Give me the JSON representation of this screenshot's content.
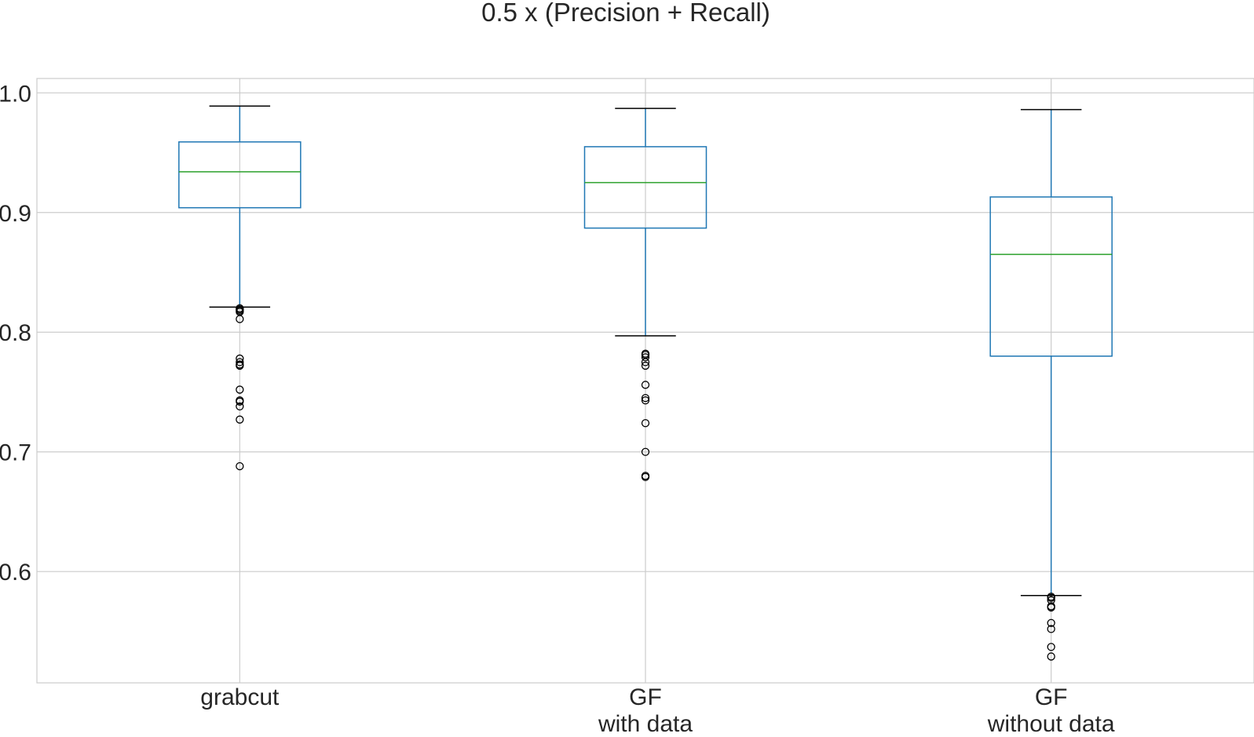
{
  "chart_data": {
    "type": "box",
    "title": "0.5 x (Precision + Recall)",
    "xlabel": "",
    "ylabel": "",
    "ylim": [
      0.507,
      1.012
    ],
    "yticks": [
      0.6,
      0.7,
      0.8,
      0.9,
      1.0
    ],
    "ytick_labels": [
      "0.6",
      "0.7",
      "0.8",
      "0.9",
      "1.0"
    ],
    "grid": true,
    "categories": [
      {
        "lines": [
          "grabcut"
        ]
      },
      {
        "lines": [
          "GF",
          "with data"
        ]
      },
      {
        "lines": [
          "GF",
          "without data"
        ]
      }
    ],
    "boxes": [
      {
        "whisker_low": 0.821,
        "q1": 0.904,
        "median": 0.934,
        "q3": 0.959,
        "whisker_high": 0.989,
        "outliers": [
          0.82,
          0.819,
          0.818,
          0.817,
          0.811,
          0.778,
          0.775,
          0.773,
          0.772,
          0.752,
          0.743,
          0.742,
          0.738,
          0.727,
          0.688
        ]
      },
      {
        "whisker_low": 0.797,
        "q1": 0.887,
        "median": 0.925,
        "q3": 0.955,
        "whisker_high": 0.987,
        "outliers": [
          0.782,
          0.781,
          0.779,
          0.775,
          0.772,
          0.756,
          0.745,
          0.743,
          0.724,
          0.7,
          0.68,
          0.679
        ]
      },
      {
        "whisker_low": 0.58,
        "q1": 0.78,
        "median": 0.865,
        "q3": 0.913,
        "whisker_high": 0.986,
        "outliers": [
          0.579,
          0.578,
          0.576,
          0.571,
          0.57,
          0.557,
          0.552,
          0.537,
          0.529
        ]
      }
    ],
    "colors": {
      "box": "#1f77b4",
      "median": "#2ca02c",
      "caps": "#000000",
      "outliers": "#000000",
      "grid": "#cccccc",
      "text": "#262626"
    }
  }
}
